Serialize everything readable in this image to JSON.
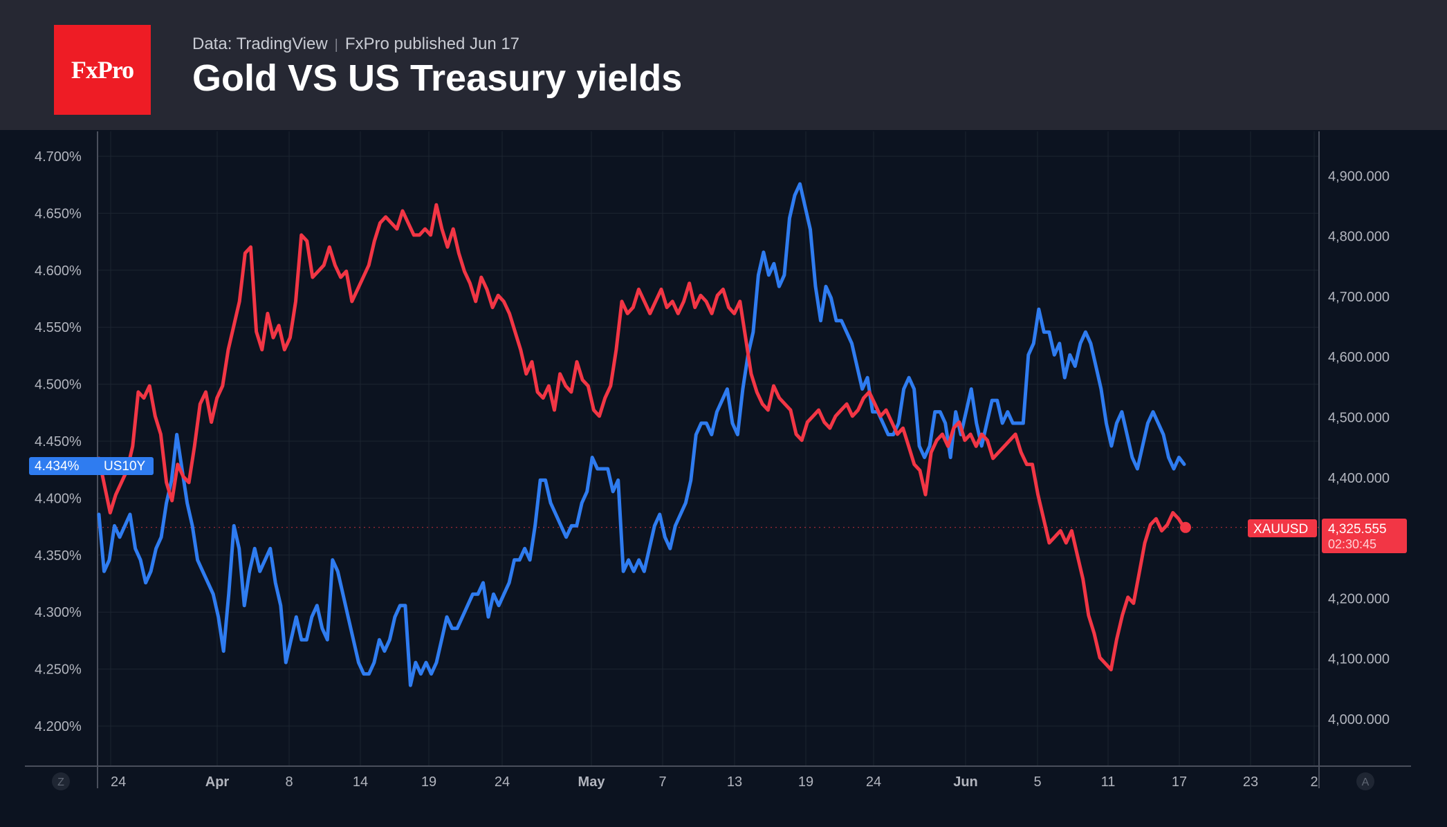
{
  "header": {
    "logo_text": "FxPro",
    "source": "Data: TradingView",
    "published": "FxPro published Jun 17",
    "title": "Gold VS US Treasury yields"
  },
  "colors": {
    "header_bg": "#262833",
    "chart_bg": "#0c1320",
    "gold_line": "#f23645",
    "yield_line": "#2f7cf0",
    "logo_bg": "#ee1c25"
  },
  "chart_data": {
    "type": "line",
    "title": "Gold VS US Treasury yields",
    "x_ticks": [
      "24",
      "Apr",
      "8",
      "14",
      "19",
      "24",
      "May",
      "7",
      "13",
      "19",
      "24",
      "Jun",
      "5",
      "11",
      "17",
      "23",
      "2"
    ],
    "bold_ticks": [
      "Apr",
      "May",
      "Jun"
    ],
    "left_axis": {
      "ticks": [
        "4.700%",
        "4.650%",
        "4.600%",
        "4.550%",
        "4.500%",
        "4.450%",
        "4.400%",
        "4.350%",
        "4.300%",
        "4.250%",
        "4.200%"
      ],
      "range": [
        4.175,
        4.725
      ]
    },
    "right_axis": {
      "ticks": [
        "4,900.000",
        "4,800.000",
        "4,700.000",
        "4,600.000",
        "4,500.000",
        "4,400.000",
        "4,200.000",
        "4,100.000",
        "4,000.000"
      ],
      "range": [
        3970,
        4950
      ]
    },
    "grid": true,
    "corner_buttons": [
      "Z",
      "A"
    ],
    "series": [
      {
        "name": "US10Y",
        "axis": "left",
        "color": "#2f7cf0",
        "last_label": "4.434%",
        "values": [
          4.39,
          4.34,
          4.35,
          4.38,
          4.37,
          4.38,
          4.39,
          4.36,
          4.35,
          4.33,
          4.34,
          4.36,
          4.37,
          4.4,
          4.42,
          4.46,
          4.43,
          4.4,
          4.38,
          4.35,
          4.34,
          4.33,
          4.32,
          4.3,
          4.27,
          4.32,
          4.38,
          4.36,
          4.31,
          4.34,
          4.36,
          4.34,
          4.35,
          4.36,
          4.33,
          4.31,
          4.26,
          4.28,
          4.3,
          4.28,
          4.28,
          4.3,
          4.31,
          4.29,
          4.28,
          4.35,
          4.34,
          4.32,
          4.3,
          4.28,
          4.26,
          4.25,
          4.25,
          4.26,
          4.28,
          4.27,
          4.28,
          4.3,
          4.31,
          4.31,
          4.24,
          4.26,
          4.25,
          4.26,
          4.25,
          4.26,
          4.28,
          4.3,
          4.29,
          4.29,
          4.3,
          4.31,
          4.32,
          4.32,
          4.33,
          4.3,
          4.32,
          4.31,
          4.32,
          4.33,
          4.35,
          4.35,
          4.36,
          4.35,
          4.38,
          4.42,
          4.42,
          4.4,
          4.39,
          4.38,
          4.37,
          4.38,
          4.38,
          4.4,
          4.41,
          4.44,
          4.43,
          4.43,
          4.43,
          4.41,
          4.42,
          4.34,
          4.35,
          4.34,
          4.35,
          4.34,
          4.36,
          4.38,
          4.39,
          4.37,
          4.36,
          4.38,
          4.39,
          4.4,
          4.42,
          4.46,
          4.47,
          4.47,
          4.46,
          4.48,
          4.49,
          4.5,
          4.47,
          4.46,
          4.5,
          4.53,
          4.55,
          4.6,
          4.62,
          4.6,
          4.61,
          4.59,
          4.6,
          4.65,
          4.67,
          4.68,
          4.66,
          4.64,
          4.59,
          4.56,
          4.59,
          4.58,
          4.56,
          4.56,
          4.55,
          4.54,
          4.52,
          4.5,
          4.51,
          4.48,
          4.48,
          4.47,
          4.46,
          4.46,
          4.47,
          4.5,
          4.51,
          4.5,
          4.45,
          4.44,
          4.45,
          4.48,
          4.48,
          4.47,
          4.44,
          4.48,
          4.46,
          4.48,
          4.5,
          4.47,
          4.45,
          4.47,
          4.49,
          4.49,
          4.47,
          4.48,
          4.47,
          4.47,
          4.47,
          4.53,
          4.54,
          4.57,
          4.55,
          4.55,
          4.53,
          4.54,
          4.51,
          4.53,
          4.52,
          4.54,
          4.55,
          4.54,
          4.52,
          4.5,
          4.47,
          4.45,
          4.47,
          4.48,
          4.46,
          4.44,
          4.43,
          4.45,
          4.47,
          4.48,
          4.47,
          4.46,
          4.44,
          4.43,
          4.44,
          4.434
        ]
      },
      {
        "name": "XAUUSD",
        "axis": "right",
        "color": "#f23645",
        "last_label": "4,325.555",
        "countdown": "02:30:45",
        "values": [
          4440,
          4395,
          4350,
          4380,
          4400,
          4420,
          4460,
          4550,
          4540,
          4560,
          4510,
          4480,
          4400,
          4370,
          4430,
          4410,
          4400,
          4460,
          4530,
          4550,
          4500,
          4540,
          4560,
          4620,
          4660,
          4700,
          4780,
          4790,
          4650,
          4620,
          4680,
          4640,
          4660,
          4620,
          4640,
          4700,
          4810,
          4800,
          4740,
          4750,
          4760,
          4790,
          4760,
          4740,
          4750,
          4700,
          4720,
          4740,
          4760,
          4800,
          4830,
          4840,
          4830,
          4820,
          4850,
          4830,
          4810,
          4810,
          4820,
          4810,
          4860,
          4820,
          4790,
          4820,
          4780,
          4750,
          4730,
          4700,
          4740,
          4720,
          4690,
          4710,
          4700,
          4680,
          4650,
          4620,
          4580,
          4600,
          4550,
          4540,
          4560,
          4520,
          4580,
          4560,
          4550,
          4600,
          4570,
          4560,
          4520,
          4510,
          4540,
          4560,
          4620,
          4700,
          4680,
          4690,
          4720,
          4700,
          4680,
          4700,
          4720,
          4690,
          4700,
          4680,
          4700,
          4730,
          4690,
          4710,
          4700,
          4680,
          4710,
          4720,
          4690,
          4680,
          4700,
          4640,
          4580,
          4550,
          4530,
          4520,
          4560,
          4540,
          4530,
          4520,
          4480,
          4470,
          4500,
          4510,
          4520,
          4500,
          4490,
          4510,
          4520,
          4530,
          4510,
          4520,
          4540,
          4550,
          4530,
          4510,
          4520,
          4500,
          4480,
          4490,
          4460,
          4430,
          4420,
          4380,
          4450,
          4470,
          4480,
          4460,
          4490,
          4500,
          4470,
          4480,
          4460,
          4480,
          4470,
          4440,
          4450,
          4460,
          4470,
          4480,
          4450,
          4430,
          4430,
          4380,
          4340,
          4300,
          4310,
          4320,
          4300,
          4320,
          4280,
          4240,
          4180,
          4150,
          4110,
          4100,
          4090,
          4140,
          4180,
          4210,
          4200,
          4250,
          4300,
          4330,
          4340,
          4320,
          4330,
          4350,
          4340,
          4325.555
        ]
      }
    ]
  }
}
